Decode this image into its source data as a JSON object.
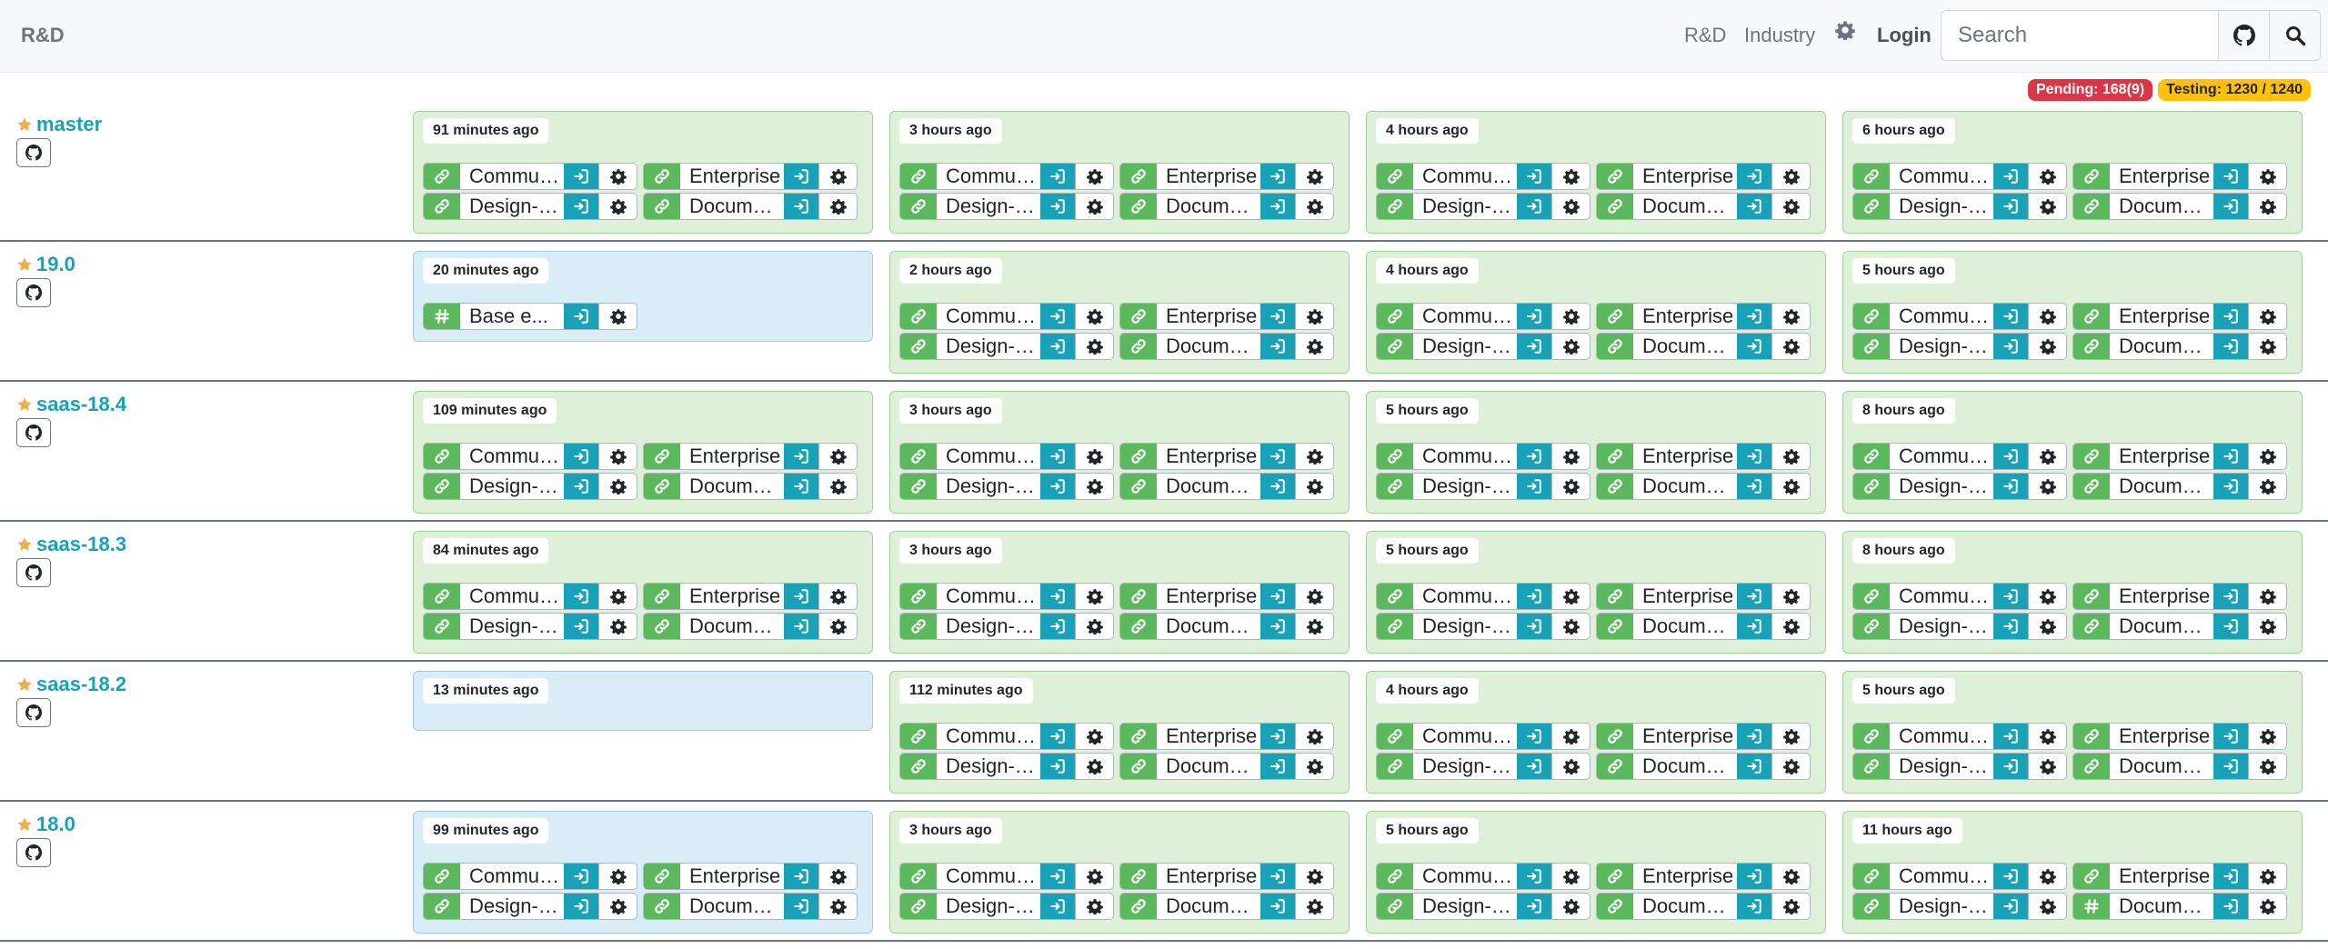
{
  "colors": {
    "success": "#5cb85c",
    "info": "#17a2b8",
    "card_green": "#dff0d8",
    "card_blue": "#d9edf7",
    "danger": "#dc3545",
    "warning": "#ffc107",
    "star": "#f0ad4e"
  },
  "topbar": {
    "brand": "R&D",
    "nav_rd": "R&D",
    "nav_industry": "Industry",
    "nav_settings_icon": "gear-icon",
    "login": "Login",
    "search_placeholder": "Search"
  },
  "status": {
    "pending": "Pending: 168(9)",
    "testing": "Testing: 1230 / 1240"
  },
  "rows": [
    {
      "name": "master",
      "batches": [
        {
          "time": "91 minutes ago",
          "state": "green",
          "builds": [
            {
              "name": "Community",
              "icon": "link"
            },
            {
              "name": "Enterprise",
              "icon": "link"
            },
            {
              "name": "Design-themes",
              "icon": "link"
            },
            {
              "name": "Documentation",
              "icon": "link"
            }
          ]
        },
        {
          "time": "3 hours ago",
          "state": "green",
          "builds": [
            {
              "name": "Community",
              "icon": "link"
            },
            {
              "name": "Enterprise",
              "icon": "link"
            },
            {
              "name": "Design-themes",
              "icon": "link"
            },
            {
              "name": "Documentation",
              "icon": "link"
            }
          ]
        },
        {
          "time": "4 hours ago",
          "state": "green",
          "builds": [
            {
              "name": "Community",
              "icon": "link"
            },
            {
              "name": "Enterprise",
              "icon": "link"
            },
            {
              "name": "Design-themes",
              "icon": "link"
            },
            {
              "name": "Documentation",
              "icon": "link"
            }
          ]
        },
        {
          "time": "6 hours ago",
          "state": "green",
          "builds": [
            {
              "name": "Community",
              "icon": "link"
            },
            {
              "name": "Enterprise",
              "icon": "link"
            },
            {
              "name": "Design-themes",
              "icon": "link"
            },
            {
              "name": "Documentation",
              "icon": "link"
            }
          ]
        }
      ]
    },
    {
      "name": "19.0",
      "batches": [
        {
          "time": "20 minutes ago",
          "state": "blue",
          "builds": [
            {
              "name": "Base e...",
              "icon": "hash"
            }
          ]
        },
        {
          "time": "2 hours ago",
          "state": "green",
          "builds": [
            {
              "name": "Community",
              "icon": "link"
            },
            {
              "name": "Enterprise",
              "icon": "link"
            },
            {
              "name": "Design-themes",
              "icon": "link"
            },
            {
              "name": "Documentation",
              "icon": "link"
            }
          ]
        },
        {
          "time": "4 hours ago",
          "state": "green",
          "builds": [
            {
              "name": "Community",
              "icon": "link"
            },
            {
              "name": "Enterprise",
              "icon": "link"
            },
            {
              "name": "Design-themes",
              "icon": "link"
            },
            {
              "name": "Documentation",
              "icon": "link"
            }
          ]
        },
        {
          "time": "5 hours ago",
          "state": "green",
          "builds": [
            {
              "name": "Community",
              "icon": "link"
            },
            {
              "name": "Enterprise",
              "icon": "link"
            },
            {
              "name": "Design-themes",
              "icon": "link"
            },
            {
              "name": "Documentation",
              "icon": "link"
            }
          ]
        }
      ]
    },
    {
      "name": "saas-18.4",
      "batches": [
        {
          "time": "109 minutes ago",
          "state": "green",
          "builds": [
            {
              "name": "Community",
              "icon": "link"
            },
            {
              "name": "Enterprise",
              "icon": "link"
            },
            {
              "name": "Design-themes",
              "icon": "link"
            },
            {
              "name": "Documentation",
              "icon": "link"
            }
          ]
        },
        {
          "time": "3 hours ago",
          "state": "green",
          "builds": [
            {
              "name": "Community",
              "icon": "link"
            },
            {
              "name": "Enterprise",
              "icon": "link"
            },
            {
              "name": "Design-themes",
              "icon": "link"
            },
            {
              "name": "Documentation",
              "icon": "link"
            }
          ]
        },
        {
          "time": "5 hours ago",
          "state": "green",
          "builds": [
            {
              "name": "Community",
              "icon": "link"
            },
            {
              "name": "Enterprise",
              "icon": "link"
            },
            {
              "name": "Design-themes",
              "icon": "link"
            },
            {
              "name": "Documentation",
              "icon": "link"
            }
          ]
        },
        {
          "time": "8 hours ago",
          "state": "green",
          "builds": [
            {
              "name": "Community",
              "icon": "link"
            },
            {
              "name": "Enterprise",
              "icon": "link"
            },
            {
              "name": "Design-themes",
              "icon": "link"
            },
            {
              "name": "Documentation",
              "icon": "link"
            }
          ]
        }
      ]
    },
    {
      "name": "saas-18.3",
      "batches": [
        {
          "time": "84 minutes ago",
          "state": "green",
          "builds": [
            {
              "name": "Community",
              "icon": "link"
            },
            {
              "name": "Enterprise",
              "icon": "link"
            },
            {
              "name": "Design-themes",
              "icon": "link"
            },
            {
              "name": "Documentation",
              "icon": "link"
            }
          ]
        },
        {
          "time": "3 hours ago",
          "state": "green",
          "builds": [
            {
              "name": "Community",
              "icon": "link"
            },
            {
              "name": "Enterprise",
              "icon": "link"
            },
            {
              "name": "Design-themes",
              "icon": "link"
            },
            {
              "name": "Documentation",
              "icon": "link"
            }
          ]
        },
        {
          "time": "5 hours ago",
          "state": "green",
          "builds": [
            {
              "name": "Community",
              "icon": "link"
            },
            {
              "name": "Enterprise",
              "icon": "link"
            },
            {
              "name": "Design-themes",
              "icon": "link"
            },
            {
              "name": "Documentation",
              "icon": "link"
            }
          ]
        },
        {
          "time": "8 hours ago",
          "state": "green",
          "builds": [
            {
              "name": "Community",
              "icon": "link"
            },
            {
              "name": "Enterprise",
              "icon": "link"
            },
            {
              "name": "Design-themes",
              "icon": "link"
            },
            {
              "name": "Documentation",
              "icon": "link"
            }
          ]
        }
      ]
    },
    {
      "name": "saas-18.2",
      "batches": [
        {
          "time": "13 minutes ago",
          "state": "blue",
          "builds": []
        },
        {
          "time": "112 minutes ago",
          "state": "green",
          "builds": [
            {
              "name": "Community",
              "icon": "link"
            },
            {
              "name": "Enterprise",
              "icon": "link"
            },
            {
              "name": "Design-themes",
              "icon": "link"
            },
            {
              "name": "Documentation",
              "icon": "link"
            }
          ]
        },
        {
          "time": "4 hours ago",
          "state": "green",
          "builds": [
            {
              "name": "Community",
              "icon": "link"
            },
            {
              "name": "Enterprise",
              "icon": "link"
            },
            {
              "name": "Design-themes",
              "icon": "link"
            },
            {
              "name": "Documentation",
              "icon": "link"
            }
          ]
        },
        {
          "time": "5 hours ago",
          "state": "green",
          "builds": [
            {
              "name": "Community",
              "icon": "link"
            },
            {
              "name": "Enterprise",
              "icon": "link"
            },
            {
              "name": "Design-themes",
              "icon": "link"
            },
            {
              "name": "Documentation",
              "icon": "link"
            }
          ]
        }
      ]
    },
    {
      "name": "18.0",
      "batches": [
        {
          "time": "99 minutes ago",
          "state": "blue",
          "builds": [
            {
              "name": "Community",
              "icon": "link"
            },
            {
              "name": "Enterprise",
              "icon": "link"
            },
            {
              "name": "Design-themes",
              "icon": "link"
            },
            {
              "name": "Documentation",
              "icon": "link"
            }
          ]
        },
        {
          "time": "3 hours ago",
          "state": "green",
          "builds": [
            {
              "name": "Community",
              "icon": "link"
            },
            {
              "name": "Enterprise",
              "icon": "link"
            },
            {
              "name": "Design-themes",
              "icon": "link"
            },
            {
              "name": "Documentation",
              "icon": "link"
            }
          ]
        },
        {
          "time": "5 hours ago",
          "state": "green",
          "builds": [
            {
              "name": "Community",
              "icon": "link"
            },
            {
              "name": "Enterprise",
              "icon": "link"
            },
            {
              "name": "Design-themes",
              "icon": "link"
            },
            {
              "name": "Documentation",
              "icon": "link"
            }
          ]
        },
        {
          "time": "11 hours ago",
          "state": "green",
          "builds": [
            {
              "name": "Community",
              "icon": "link"
            },
            {
              "name": "Enterprise",
              "icon": "link"
            },
            {
              "name": "Design-themes",
              "icon": "link"
            },
            {
              "name": "Documentation",
              "icon": "hash"
            }
          ]
        }
      ]
    }
  ]
}
